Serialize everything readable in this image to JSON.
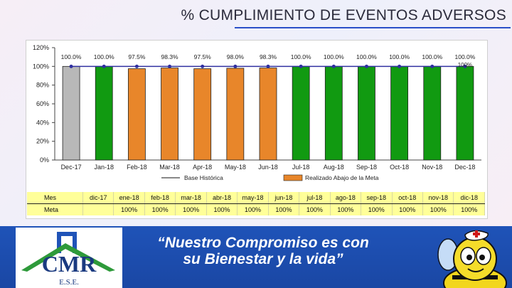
{
  "title": "% CUMPLIMIENTO DE EVENTOS ADVERSOS",
  "slogan": {
    "line1": "“Nuestro Compromiso es con",
    "line2": "su Bienestar y la vida”"
  },
  "logo": {
    "text": "CMR",
    "subtext": "E.S.E."
  },
  "colors": {
    "banner": "#1f53b8",
    "bar_base": "#c0c0c0",
    "bar_good": "#119a11",
    "bar_below": "#e8862a",
    "meta_line": "#3030a0",
    "table_bg": "#ffff99"
  },
  "chart_data": {
    "type": "bar",
    "categories": [
      "Dec-17",
      "Jan-18",
      "Feb-18",
      "Mar-18",
      "Apr-18",
      "May-18",
      "Jun-18",
      "Jul-18",
      "Aug-18",
      "Sep-18",
      "Oct-18",
      "Nov-18",
      "Dec-18"
    ],
    "values": [
      100,
      100,
      97.5,
      98.3,
      97.5,
      98,
      98.3,
      100,
      100,
      100,
      100,
      100,
      100
    ],
    "data_labels": [
      "100.0%",
      "100.0%",
      "97.5%",
      "98.3%",
      "97.5%",
      "98.0%",
      "98.3%",
      "100.0%",
      "100.0%",
      "100.0%",
      "100.0%",
      "100.0%",
      "100.0%"
    ],
    "bar_kind": [
      "base",
      "good",
      "below",
      "below",
      "below",
      "below",
      "below",
      "good",
      "good",
      "good",
      "good",
      "good",
      "good"
    ],
    "meta_line": [
      100,
      100,
      100,
      100,
      100,
      100,
      100,
      100,
      100,
      100,
      100,
      100,
      100
    ],
    "extra_label": "100%",
    "y_ticks": [
      "0%",
      "20%",
      "40%",
      "60%",
      "80%",
      "100%",
      "120%"
    ],
    "y_tick_values": [
      0,
      20,
      40,
      60,
      80,
      100,
      120
    ],
    "ylim": [
      0,
      120
    ],
    "legend": [
      {
        "name": "Base Histórica",
        "kind": "line"
      },
      {
        "name": "Realizado Abajo de la Meta",
        "kind": "below"
      }
    ],
    "table": {
      "row_labels": [
        "Mes",
        "Meta"
      ],
      "months": [
        "dic-17",
        "ene-18",
        "feb-18",
        "mar-18",
        "abr-18",
        "may-18",
        "jun-18",
        "jul-18",
        "ago-18",
        "sep-18",
        "oct-18",
        "nov-18",
        "dic-18"
      ],
      "meta": [
        "",
        "100%",
        "100%",
        "100%",
        "100%",
        "100%",
        "100%",
        "100%",
        "100%",
        "100%",
        "100%",
        "100%",
        "100%"
      ]
    }
  }
}
